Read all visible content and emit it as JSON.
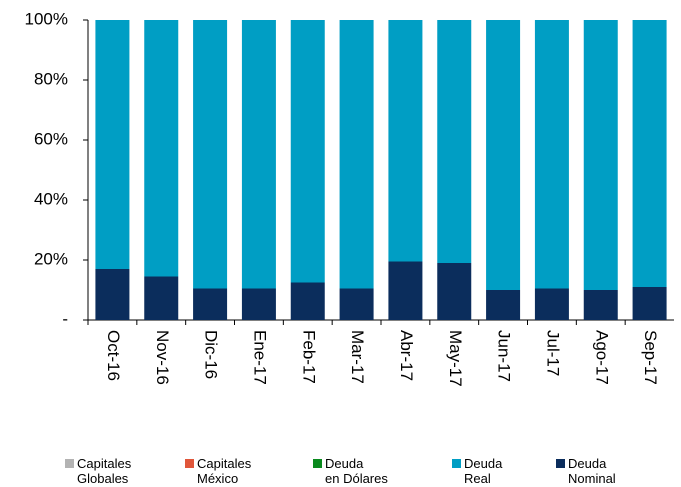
{
  "chart_data": {
    "type": "stacked_bar",
    "categories": [
      "Oct-16",
      "Nov-16",
      "Dic-16",
      "Ene-17",
      "Feb-17",
      "Mar-17",
      "Abr-17",
      "May-17",
      "Jun-17",
      "Jul-17",
      "Ago-17",
      "Sep-17"
    ],
    "series": [
      {
        "name": "Capitales\nGlobales",
        "color": "#b3b3b3",
        "values": [
          0,
          0,
          0,
          0,
          0,
          0,
          0,
          0,
          0,
          0,
          0,
          0
        ]
      },
      {
        "name": "Capitales\nMéxico",
        "color": "#e0563a",
        "values": [
          0,
          0,
          0,
          0,
          0,
          0,
          0,
          0,
          0,
          0,
          0,
          0
        ]
      },
      {
        "name": "Deuda\nen Dólares",
        "color": "#0a8a1e",
        "values": [
          0,
          0,
          0,
          0,
          0,
          0,
          0,
          0,
          0,
          0,
          0,
          0
        ]
      },
      {
        "name": "Deuda\nReal",
        "color": "#009ec4",
        "values": [
          83,
          85.5,
          89.5,
          89.5,
          87.5,
          89.5,
          80.5,
          81,
          90,
          89.5,
          90,
          89
        ]
      },
      {
        "name": "Deuda\nNominal",
        "color": "#0b2d5c",
        "values": [
          17,
          14.5,
          10.5,
          10.5,
          12.5,
          10.5,
          19.5,
          19,
          10,
          10.5,
          10,
          11
        ]
      }
    ],
    "stack_order": [
      "Deuda\nNominal",
      "Deuda\nReal",
      "Deuda\nen Dólares",
      "Capitales\nMéxico",
      "Capitales\nGlobales"
    ],
    "ylim": [
      0,
      100
    ],
    "yticks": [
      {
        "value": 0,
        "label": "-"
      },
      {
        "value": 20,
        "label": "20%"
      },
      {
        "value": 40,
        "label": "40%"
      },
      {
        "value": 60,
        "label": "60%"
      },
      {
        "value": 80,
        "label": "80%"
      },
      {
        "value": 100,
        "label": "100%"
      }
    ],
    "grid": false
  }
}
